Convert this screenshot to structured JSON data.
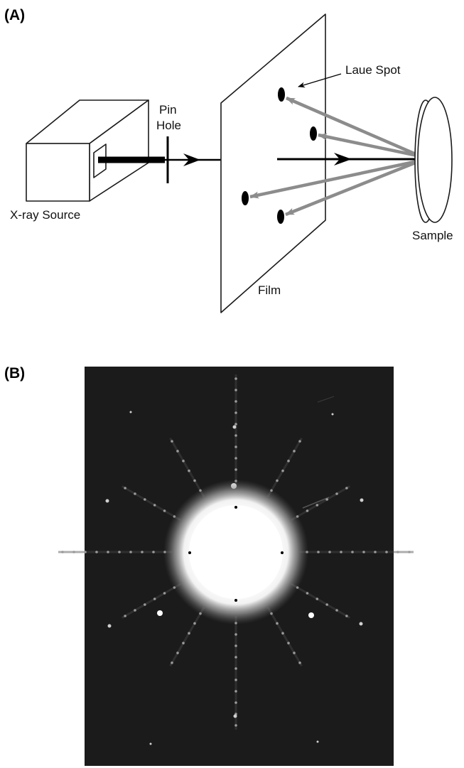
{
  "panel_a": {
    "label": "(A)",
    "labels": {
      "laue_spot": "Laue Spot",
      "pin": "Pin",
      "hole": "Hole",
      "xray_source": "X-ray Source",
      "film": "Film",
      "sample": "Sample"
    }
  },
  "panel_b": {
    "label": "(B)"
  },
  "colors": {
    "outline": "#1a1a1a",
    "beam": "#000000",
    "diffracted_ray": "#8c8c8c",
    "pattern_background": "#1b1b1b",
    "pattern_glow": "#ffffff"
  }
}
